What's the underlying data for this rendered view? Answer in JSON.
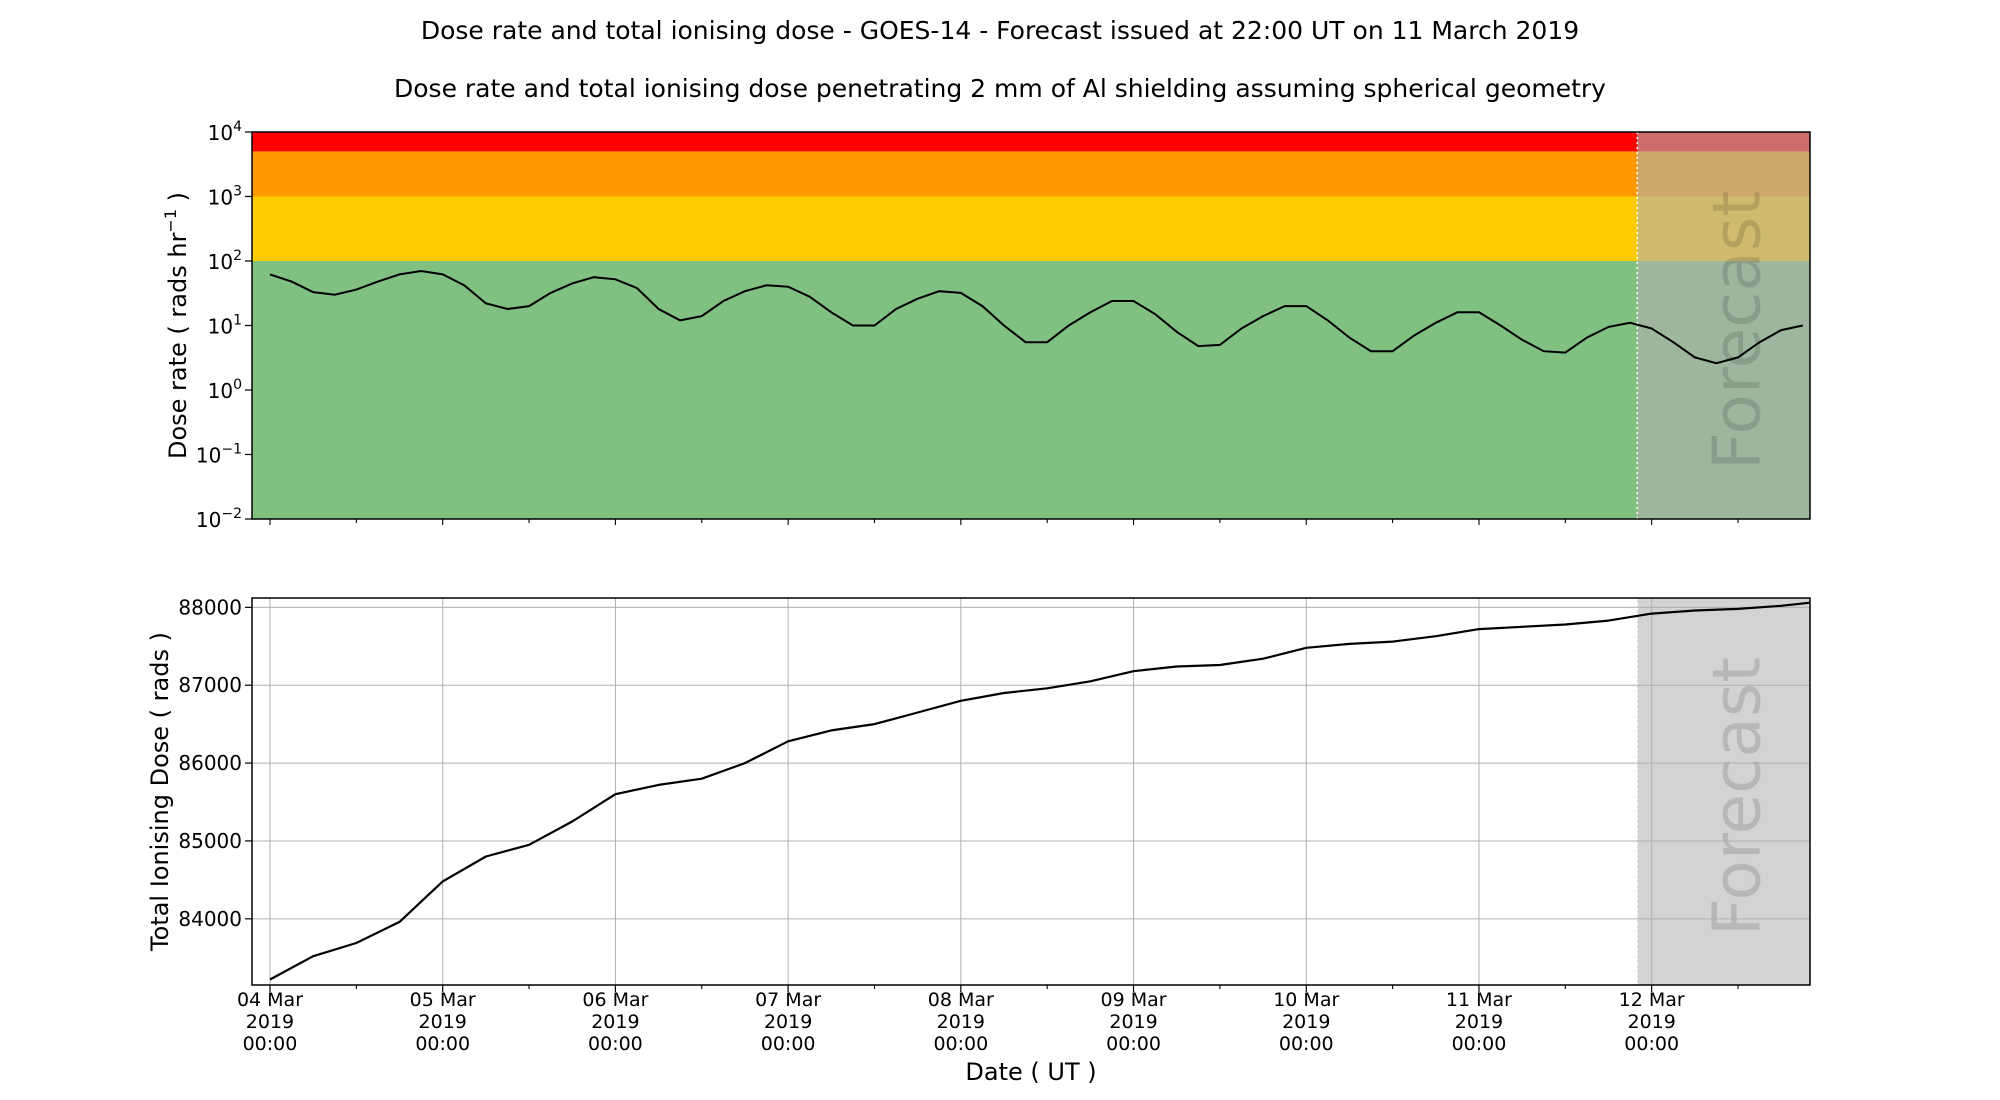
{
  "title": "Dose rate and total ionising dose - GOES-14 - Forecast issued at 22:00 UT on 11 March 2019",
  "subtitle": "Dose rate and total ionising dose penetrating 2 mm of Al shielding assuming spherical geometry",
  "forecast_label": "Forecast",
  "colors": {
    "line": "#000000",
    "band_green": "#80c080",
    "band_yellow": "#ffcc00",
    "band_orange": "#ff9900",
    "band_red": "#ff0000",
    "forecast_overlay": "#b0b0b0",
    "grid": "#b0b0b0"
  },
  "chart_data": [
    {
      "type": "line",
      "name": "dose-rate",
      "ylabel_main": "Dose rate ( rads hr",
      "ylabel_sup": "−1",
      "ylabel_end": " )",
      "yscale": "log",
      "ylim": [
        0.01,
        10000
      ],
      "yticks": [
        {
          "base": "10",
          "exp": "4",
          "value": 10000
        },
        {
          "base": "10",
          "exp": "3",
          "value": 1000
        },
        {
          "base": "10",
          "exp": "2",
          "value": 100
        },
        {
          "base": "10",
          "exp": "1",
          "value": 10
        },
        {
          "base": "10",
          "exp": "0",
          "value": 1
        },
        {
          "base": "10",
          "exp": "−1",
          "value": 0.1
        },
        {
          "base": "10",
          "exp": "−2",
          "value": 0.01
        }
      ],
      "thresholds": [
        {
          "from": 0.01,
          "to": 100,
          "color": "#80c080"
        },
        {
          "from": 100,
          "to": 1000,
          "color": "#ffcc00"
        },
        {
          "from": 1000,
          "to": 5000,
          "color": "#ff9900"
        },
        {
          "from": 5000,
          "to": 10000,
          "color": "#ff0000"
        }
      ],
      "xlim": [
        "2019-03-03 21:30",
        "2019-03-12 22:00"
      ],
      "forecast_start": "2019-03-11 22:00",
      "x": [
        "2019-03-04 00:00",
        "2019-03-04 03:00",
        "2019-03-04 06:00",
        "2019-03-04 09:00",
        "2019-03-04 12:00",
        "2019-03-04 15:00",
        "2019-03-04 18:00",
        "2019-03-04 21:00",
        "2019-03-05 00:00",
        "2019-03-05 03:00",
        "2019-03-05 06:00",
        "2019-03-05 09:00",
        "2019-03-05 12:00",
        "2019-03-05 15:00",
        "2019-03-05 18:00",
        "2019-03-05 21:00",
        "2019-03-06 00:00",
        "2019-03-06 03:00",
        "2019-03-06 06:00",
        "2019-03-06 09:00",
        "2019-03-06 12:00",
        "2019-03-06 15:00",
        "2019-03-06 18:00",
        "2019-03-06 21:00",
        "2019-03-07 00:00",
        "2019-03-07 03:00",
        "2019-03-07 06:00",
        "2019-03-07 09:00",
        "2019-03-07 12:00",
        "2019-03-07 15:00",
        "2019-03-07 18:00",
        "2019-03-07 21:00",
        "2019-03-08 00:00",
        "2019-03-08 03:00",
        "2019-03-08 06:00",
        "2019-03-08 09:00",
        "2019-03-08 12:00",
        "2019-03-08 15:00",
        "2019-03-08 18:00",
        "2019-03-08 21:00",
        "2019-03-09 00:00",
        "2019-03-09 03:00",
        "2019-03-09 06:00",
        "2019-03-09 09:00",
        "2019-03-09 12:00",
        "2019-03-09 15:00",
        "2019-03-09 18:00",
        "2019-03-09 21:00",
        "2019-03-10 00:00",
        "2019-03-10 03:00",
        "2019-03-10 06:00",
        "2019-03-10 09:00",
        "2019-03-10 12:00",
        "2019-03-10 15:00",
        "2019-03-10 18:00",
        "2019-03-10 21:00",
        "2019-03-11 00:00",
        "2019-03-11 03:00",
        "2019-03-11 06:00",
        "2019-03-11 09:00",
        "2019-03-11 12:00",
        "2019-03-11 15:00",
        "2019-03-11 18:00",
        "2019-03-11 21:00",
        "2019-03-12 00:00",
        "2019-03-12 03:00",
        "2019-03-12 06:00",
        "2019-03-12 09:00",
        "2019-03-12 12:00",
        "2019-03-12 15:00",
        "2019-03-12 18:00",
        "2019-03-12 21:00"
      ],
      "y": [
        62,
        48,
        33,
        30,
        36,
        48,
        62,
        70,
        62,
        42,
        22,
        18,
        20,
        32,
        45,
        56,
        52,
        38,
        18,
        12,
        14,
        24,
        34,
        42,
        40,
        28,
        16,
        10,
        10,
        18,
        26,
        34,
        32,
        20,
        10,
        5.5,
        5.5,
        10,
        16,
        24,
        24,
        15,
        8,
        4.8,
        5,
        9,
        14,
        20,
        20,
        12,
        6.5,
        4,
        4,
        7,
        11,
        16,
        16,
        10,
        6,
        4,
        3.8,
        6.5,
        9.5,
        11,
        9,
        5.5,
        3.2,
        2.6,
        3.2,
        5.5,
        8.5,
        10
      ]
    },
    {
      "type": "line",
      "name": "total-dose",
      "ylabel": "Total Ionising Dose ( rads )",
      "ylim": [
        83150,
        88120
      ],
      "yticks": [
        84000,
        85000,
        86000,
        87000,
        88000
      ],
      "xlim": [
        "2019-03-03 21:30",
        "2019-03-12 22:00"
      ],
      "forecast_start": "2019-03-11 22:00",
      "xlabel": "Date ( UT )",
      "xticks": [
        {
          "date": "2019-03-04 00:00",
          "l1": "04 Mar",
          "l2": "2019",
          "l3": "00:00"
        },
        {
          "date": "2019-03-05 00:00",
          "l1": "05 Mar",
          "l2": "2019",
          "l3": "00:00"
        },
        {
          "date": "2019-03-06 00:00",
          "l1": "06 Mar",
          "l2": "2019",
          "l3": "00:00"
        },
        {
          "date": "2019-03-07 00:00",
          "l1": "07 Mar",
          "l2": "2019",
          "l3": "00:00"
        },
        {
          "date": "2019-03-08 00:00",
          "l1": "08 Mar",
          "l2": "2019",
          "l3": "00:00"
        },
        {
          "date": "2019-03-09 00:00",
          "l1": "09 Mar",
          "l2": "2019",
          "l3": "00:00"
        },
        {
          "date": "2019-03-10 00:00",
          "l1": "10 Mar",
          "l2": "2019",
          "l3": "00:00"
        },
        {
          "date": "2019-03-11 00:00",
          "l1": "11 Mar",
          "l2": "2019",
          "l3": "00:00"
        },
        {
          "date": "2019-03-12 00:00",
          "l1": "12 Mar",
          "l2": "2019",
          "l3": "00:00"
        }
      ],
      "grid": true,
      "x": [
        "2019-03-04 00:00",
        "2019-03-04 06:00",
        "2019-03-04 12:00",
        "2019-03-04 18:00",
        "2019-03-05 00:00",
        "2019-03-05 06:00",
        "2019-03-05 12:00",
        "2019-03-05 18:00",
        "2019-03-06 00:00",
        "2019-03-06 06:00",
        "2019-03-06 12:00",
        "2019-03-06 18:00",
        "2019-03-07 00:00",
        "2019-03-07 06:00",
        "2019-03-07 12:00",
        "2019-03-07 18:00",
        "2019-03-08 00:00",
        "2019-03-08 06:00",
        "2019-03-08 12:00",
        "2019-03-08 18:00",
        "2019-03-09 00:00",
        "2019-03-09 06:00",
        "2019-03-09 12:00",
        "2019-03-09 18:00",
        "2019-03-10 00:00",
        "2019-03-10 06:00",
        "2019-03-10 12:00",
        "2019-03-10 18:00",
        "2019-03-11 00:00",
        "2019-03-11 06:00",
        "2019-03-11 12:00",
        "2019-03-11 18:00",
        "2019-03-12 00:00",
        "2019-03-12 06:00",
        "2019-03-12 12:00",
        "2019-03-12 18:00",
        "2019-03-12 22:00"
      ],
      "y": [
        83220,
        83520,
        83690,
        83960,
        84480,
        84800,
        84950,
        85250,
        85600,
        85720,
        85800,
        86000,
        86280,
        86420,
        86500,
        86650,
        86800,
        86900,
        86960,
        87050,
        87180,
        87240,
        87260,
        87340,
        87480,
        87530,
        87560,
        87630,
        87720,
        87750,
        87780,
        87830,
        87920,
        87960,
        87980,
        88020,
        88060
      ]
    }
  ]
}
